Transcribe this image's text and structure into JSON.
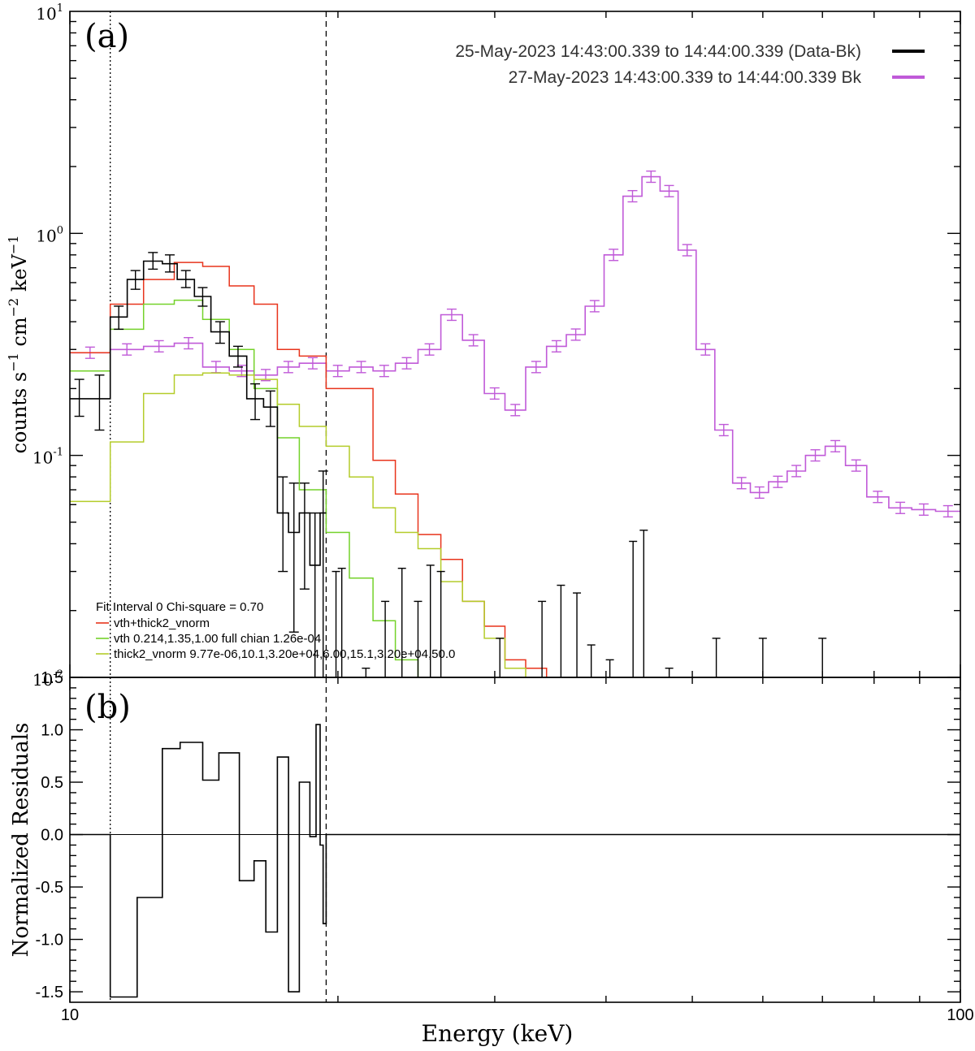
{
  "chart_data": [
    {
      "panel_label": "(a)",
      "type": "line",
      "scale": "log-log",
      "ylabel": "counts s$-1$ cm$-2$ keV$-1$",
      "xlim": [
        10,
        100
      ],
      "ylim": [
        0.01,
        10
      ],
      "y_tick_labels": [
        {
          "base": "10",
          "exp": "-2",
          "value": 0.01
        },
        {
          "base": "10",
          "exp": "-1",
          "value": 0.1
        },
        {
          "base": "10",
          "exp": "0",
          "value": 1
        },
        {
          "base": "10",
          "exp": "1",
          "value": 10
        }
      ],
      "vlines": [
        {
          "x": 11.1,
          "style": "dotted"
        },
        {
          "x": 19.4,
          "style": "dashed"
        }
      ],
      "legend": {
        "placement": "top-right",
        "entries": [
          {
            "label": "25-May-2023 14:43:00.339 to 14:44:00.339 (Data-Bk)",
            "color": "#000000"
          },
          {
            "label": "27-May-2023 14:43:00.339 to 14:44:00.339 Bk",
            "color": "#c05ad8"
          }
        ]
      },
      "fit_legend": {
        "placement": "bottom-left",
        "title": "Fit Interval 0   Chi-square = 0.70",
        "entries": [
          {
            "label": "vth+thick2_vnorm",
            "color": "#e8341c"
          },
          {
            "label": "vth 0.214,1.35,1.00  full chian 1.26e-04",
            "color": "#74d22a"
          },
          {
            "label": "thick2_vnorm 9.77e-06,10.1,3.20e+04,6.00,15.1,3.20e+04,50.0",
            "color": "#b4cc2a"
          }
        ]
      },
      "bin_edges": [
        10,
        11.1,
        12.1,
        13.1,
        14.1,
        15.1,
        16.1,
        17.1,
        18.1,
        19.4,
        20.6,
        21.9,
        23.2,
        24.6,
        26.1,
        27.6,
        29.2,
        30.8,
        32.5,
        34.3,
        36.1,
        37.9,
        39.8,
        41.8,
        43.9,
        46.0,
        48.2,
        50.5,
        53.0,
        55.5,
        58.1,
        60.9,
        63.9,
        67.0,
        70.5,
        74.3,
        78.5,
        83.1,
        88.2,
        93.8,
        100
      ],
      "series": [
        {
          "name": "25-May-2023 14:43:00.339 to 14:44:00.339 (Data-Bk)",
          "color": "#000000",
          "bins": [
            {
              "x0": 10.0,
              "x1": 10.5,
              "y": 0.18,
              "lo": 0.15,
              "hi": 0.22
            },
            {
              "x0": 10.5,
              "x1": 11.1,
              "y": 0.18,
              "lo": 0.13,
              "hi": 0.23
            },
            {
              "x0": 11.1,
              "x1": 11.6,
              "y": 0.42,
              "lo": 0.37,
              "hi": 0.47
            },
            {
              "x0": 11.6,
              "x1": 12.1,
              "y": 0.62,
              "lo": 0.56,
              "hi": 0.68
            },
            {
              "x0": 12.1,
              "x1": 12.7,
              "y": 0.75,
              "lo": 0.69,
              "hi": 0.82
            },
            {
              "x0": 12.7,
              "x1": 13.2,
              "y": 0.73,
              "lo": 0.67,
              "hi": 0.8
            },
            {
              "x0": 13.2,
              "x1": 13.8,
              "y": 0.62,
              "lo": 0.57,
              "hi": 0.68
            },
            {
              "x0": 13.8,
              "x1": 14.4,
              "y": 0.52,
              "lo": 0.47,
              "hi": 0.57
            },
            {
              "x0": 14.4,
              "x1": 15.1,
              "y": 0.36,
              "lo": 0.32,
              "hi": 0.4
            },
            {
              "x0": 15.1,
              "x1": 15.8,
              "y": 0.28,
              "lo": 0.25,
              "hi": 0.31
            },
            {
              "x0": 15.8,
              "x1": 16.5,
              "y": 0.18,
              "lo": 0.145,
              "hi": 0.21
            },
            {
              "x0": 16.5,
              "x1": 17.1,
              "y": 0.165,
              "lo": 0.135,
              "hi": 0.195
            },
            {
              "x0": 17.1,
              "x1": 17.6,
              "y": 0.055,
              "lo": 0.03,
              "hi": 0.08
            },
            {
              "x0": 17.6,
              "x1": 18.1,
              "y": 0.045,
              "lo": 0.016,
              "hi": 0.075
            },
            {
              "x0": 18.1,
              "x1": 18.6,
              "y": 0.055,
              "lo": 0.025,
              "hi": 0.075
            },
            {
              "x0": 18.6,
              "x1": 19.1,
              "y": 0.032,
              "lo": 0.01,
              "hi": 0.055
            },
            {
              "x0": 19.1,
              "x1": 19.4,
              "y": 0.055,
              "lo": 0.01,
              "hi": 0.085
            }
          ],
          "upper_errors": [
            {
              "x": 19.9,
              "hi": 0.03
            },
            {
              "x": 20.2,
              "hi": 0.031
            },
            {
              "x": 21.5,
              "hi": 0.011
            },
            {
              "x": 22.6,
              "hi": 0.022
            },
            {
              "x": 23.6,
              "hi": 0.031
            },
            {
              "x": 24.6,
              "hi": 0.022
            },
            {
              "x": 25.4,
              "hi": 0.032
            },
            {
              "x": 26.1,
              "hi": 0.03
            },
            {
              "x": 30.4,
              "hi": 0.015
            },
            {
              "x": 33.9,
              "hi": 0.022
            },
            {
              "x": 35.6,
              "hi": 0.026
            },
            {
              "x": 37.1,
              "hi": 0.024
            },
            {
              "x": 38.5,
              "hi": 0.014
            },
            {
              "x": 40.4,
              "hi": 0.012
            },
            {
              "x": 42.9,
              "hi": 0.041
            },
            {
              "x": 44.1,
              "hi": 0.046
            },
            {
              "x": 47.1,
              "hi": 0.011
            },
            {
              "x": 53.2,
              "hi": 0.015
            },
            {
              "x": 60.0,
              "hi": 0.015
            },
            {
              "x": 70.0,
              "hi": 0.015
            }
          ]
        },
        {
          "name": "27-May-2023 14:43:00.339 to 14:44:00.339 Bk",
          "color": "#c05ad8",
          "values": [
            0.29,
            0.3,
            0.31,
            0.32,
            0.25,
            0.24,
            0.23,
            0.25,
            0.26,
            0.24,
            0.25,
            0.24,
            0.26,
            0.3,
            0.43,
            0.33,
            0.19,
            0.16,
            0.25,
            0.31,
            0.35,
            0.47,
            0.8,
            1.47,
            1.8,
            1.55,
            0.84,
            0.3,
            0.13,
            0.075,
            0.068,
            0.076,
            0.085,
            0.1,
            0.11,
            0.09,
            0.065,
            0.058,
            0.057,
            0.056
          ]
        },
        {
          "name": "vth+thick2_vnorm",
          "color": "#e8341c",
          "values": [
            0.29,
            0.48,
            0.62,
            0.74,
            0.71,
            0.58,
            0.48,
            0.3,
            0.28,
            0.2,
            0.2,
            0.095,
            0.067,
            0.044,
            0.034,
            0.022,
            0.017,
            0.012,
            0.011,
            0.009
          ]
        },
        {
          "name": "vth 0.214,1.35,1.00  full chian 1.26e-04",
          "color": "#74d22a",
          "values": [
            0.24,
            0.37,
            0.48,
            0.5,
            0.41,
            0.3,
            0.2,
            0.12,
            0.07,
            0.045,
            0.028,
            0.018,
            0.012,
            0.009
          ]
        },
        {
          "name": "thick2_vnorm 9.77e-06,10.1,3.20e+04,6.00,15.1,3.20e+04,50.0",
          "color": "#b4cc2a",
          "values": [
            0.062,
            0.115,
            0.19,
            0.23,
            0.235,
            0.23,
            0.22,
            0.17,
            0.135,
            0.11,
            0.08,
            0.058,
            0.045,
            0.038,
            0.027,
            0.022,
            0.015,
            0.011,
            0.0095
          ]
        }
      ]
    },
    {
      "panel_label": "(b)",
      "type": "line",
      "xlabel": "Energy (keV)",
      "ylabel": "Normalized Residuals",
      "xlim": [
        10,
        100
      ],
      "ylim": [
        -1.6,
        1.5
      ],
      "x_tick_labels": [
        {
          "label": "10",
          "value": 10
        },
        {
          "label": "100",
          "value": 100
        }
      ],
      "y_tick_labels": [
        "1.5",
        "1.0",
        "0.5",
        "0.0",
        "-0.5",
        "-1.0",
        "-1.5"
      ],
      "vlines": [
        {
          "x": 11.1,
          "style": "dotted"
        },
        {
          "x": 19.4,
          "style": "dashed"
        }
      ],
      "series": [
        {
          "name": "",
          "color": "#000000",
          "bin_edges": [
            10,
            11.1,
            11.9,
            12.7,
            13.5,
            14.4,
            15.2,
            16.1,
            17.1,
            17.7,
            18.3,
            18.9,
            19.4,
            100
          ],
          "values": [
            0.0,
            -1.55,
            -0.6,
            0.82,
            0.88,
            0.52,
            0.78,
            -0.44,
            -0.25,
            -0.93,
            0.74,
            -1.5,
            0.0
          ]
        }
      ],
      "residual_steps": [
        {
          "x0": 10.0,
          "x1": 11.1,
          "y": 0.0
        },
        {
          "x0": 11.1,
          "x1": 11.9,
          "y": -1.55
        },
        {
          "x0": 11.9,
          "x1": 12.7,
          "y": -0.6
        },
        {
          "x0": 12.7,
          "x1": 13.3,
          "y": 0.82
        },
        {
          "x0": 13.3,
          "x1": 14.1,
          "y": 0.88
        },
        {
          "x0": 14.1,
          "x1": 14.7,
          "y": 0.52
        },
        {
          "x0": 14.7,
          "x1": 15.5,
          "y": 0.78
        },
        {
          "x0": 15.5,
          "x1": 16.1,
          "y": -0.44
        },
        {
          "x0": 16.1,
          "x1": 16.6,
          "y": -0.25
        },
        {
          "x0": 16.6,
          "x1": 17.1,
          "y": -0.93
        },
        {
          "x0": 17.1,
          "x1": 17.6,
          "y": 0.74
        },
        {
          "x0": 17.6,
          "x1": 18.1,
          "y": -1.5
        },
        {
          "x0": 18.1,
          "x1": 18.6,
          "y": 0.5
        },
        {
          "x0": 18.6,
          "x1": 18.9,
          "y": -0.02
        },
        {
          "x0": 18.9,
          "x1": 19.1,
          "y": 1.05
        },
        {
          "x0": 19.1,
          "x1": 19.25,
          "y": -0.1
        },
        {
          "x0": 19.25,
          "x1": 19.4,
          "y": -0.85
        },
        {
          "x0": 19.4,
          "x1": 100,
          "y": 0.0
        }
      ]
    }
  ]
}
